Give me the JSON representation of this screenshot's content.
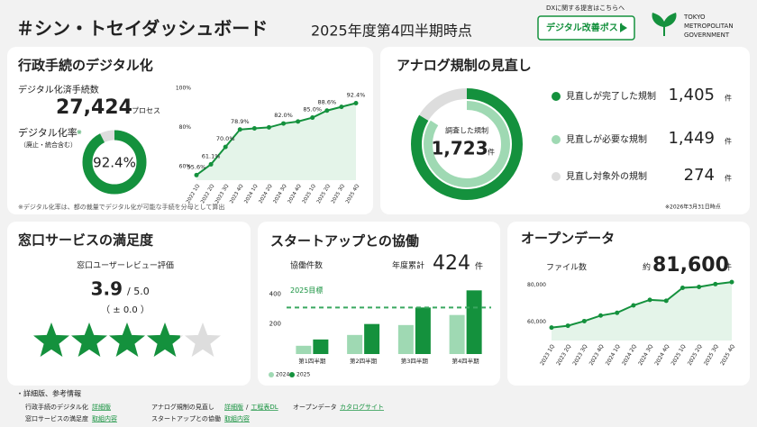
{
  "header": {
    "title": "＃シン・トセイダッシュボード",
    "period": "2025年度第4四半期時点",
    "dx_note": "DXに関する提言はこちらへ",
    "button": "デジタル改善ポスト",
    "logo": [
      "TOKYO",
      "METROPOLITAN",
      "GOVERNMENT"
    ]
  },
  "digital": {
    "title": "行政手続のデジタル化",
    "count_label": "デジタル化済手続数",
    "count": "27,424",
    "count_unit": "プロセス",
    "rate_label": "デジタル化率",
    "rate_mark": "※",
    "rate_note": "（廃止・統合含む）",
    "rate": {
      "value": 92.4,
      "label": "92.4%"
    },
    "footnote": "※デジタル化率は、都の裁量でデジタル化が可能な手続を分母として算出",
    "chart_data": {
      "type": "line",
      "categories": [
        "2022 1Q",
        "2022 2Q",
        "2023 3Q",
        "2023 4Q",
        "2024 1Q",
        "2024 2Q",
        "2024 3Q",
        "2024 4Q",
        "2025 1Q",
        "2025 2Q",
        "2025 3Q",
        "2025 4Q"
      ],
      "values": [
        55.6,
        61.1,
        70.0,
        78.9,
        79.5,
        80.0,
        82.0,
        83.0,
        85.0,
        88.6,
        90.5,
        92.4
      ],
      "value_labels": [
        "55.6%",
        "61.1%",
        "70.0%",
        "78.9%",
        null,
        null,
        "82.0%",
        null,
        "85.0%",
        "88.6%",
        null,
        "92.4%"
      ],
      "ylim": [
        53,
        100
      ],
      "yticks": [
        {
          "value": 100,
          "label": "100%"
        },
        {
          "value": 80,
          "label": "80%"
        },
        {
          "value": 60,
          "label": "60%"
        }
      ],
      "color": "#14913d"
    }
  },
  "analog": {
    "title": "アナログ規制の見直し",
    "center_label": "調査した規制",
    "total": {
      "value": 1723,
      "label": "1,723"
    },
    "unit": "件",
    "items": [
      {
        "name": "見直しが完了した規制",
        "value": 1405,
        "label": "1,405",
        "color": "#14913d"
      },
      {
        "name": "見直しが必要な規制",
        "value": 1449,
        "label": "1,449",
        "color": "#9fd9b3"
      },
      {
        "name": "見直し対象外の規制",
        "value": 274,
        "label": "274",
        "color": "#dddddd"
      }
    ],
    "note": "※2026年3月31日時点"
  },
  "service": {
    "title": "窓口サービスの満足度",
    "subtitle": "窓口ユーザーレビュー評価",
    "rating": 3.9,
    "max_text": "/ 5.0",
    "max": 5,
    "change": "（ ± 0.0 ）"
  },
  "startup": {
    "title": "スタートアップとの協働",
    "label": "協働件数",
    "cum_label": "年度累計",
    "cum": 424,
    "unit": "件",
    "chart_data": {
      "type": "bar",
      "categories": [
        "第1四半期",
        "第2四半期",
        "第3四半期",
        "第4四半期"
      ],
      "series": [
        {
          "name": "2024",
          "color": "#9fd9b3",
          "values": [
            55,
            127,
            193,
            260
          ]
        },
        {
          "name": "2025",
          "color": "#14913d",
          "values": [
            97,
            200,
            310,
            424
          ]
        }
      ],
      "target": {
        "label": "2025目標",
        "value": 310
      },
      "ylim": [
        0,
        450
      ],
      "yticks": [
        400,
        200
      ]
    }
  },
  "opendata": {
    "title": "オープンデータ",
    "label": "ファイル数",
    "approx": "約",
    "count": "81,600",
    "unit": "件",
    "chart_data": {
      "type": "line",
      "categories": [
        "2023 1Q",
        "2023 2Q",
        "2023 3Q",
        "2023 4Q",
        "2024 1Q",
        "2024 2Q",
        "2024 3Q",
        "2024 4Q",
        "2025 1Q",
        "2025 2Q",
        "2025 3Q",
        "2025 4Q"
      ],
      "values": [
        57000,
        58000,
        60500,
        63500,
        65000,
        69000,
        72000,
        71500,
        78500,
        79000,
        80500,
        81600
      ],
      "ylim": [
        50000,
        88000
      ],
      "yticks": [
        {
          "value": 80000,
          "label": "80,000"
        },
        {
          "value": 60000,
          "label": "60,000"
        }
      ],
      "color": "#14913d"
    }
  },
  "footer": {
    "heading": "・詳細版、参考情報",
    "rows": [
      [
        {
          "label": "行政手続のデジタル化",
          "links": [
            "詳細版"
          ]
        },
        {
          "label": "アナログ規制の見直し",
          "links": [
            "詳細版",
            "/",
            "工程表DL"
          ]
        },
        {
          "label": "オープンデータ",
          "links": [
            "カタログサイト"
          ]
        }
      ],
      [
        {
          "label": "窓口サービスの満足度",
          "links": [
            "取組内容"
          ]
        },
        {
          "label": "スタートアップとの協働",
          "links": [
            "取組内容"
          ]
        }
      ]
    ]
  }
}
